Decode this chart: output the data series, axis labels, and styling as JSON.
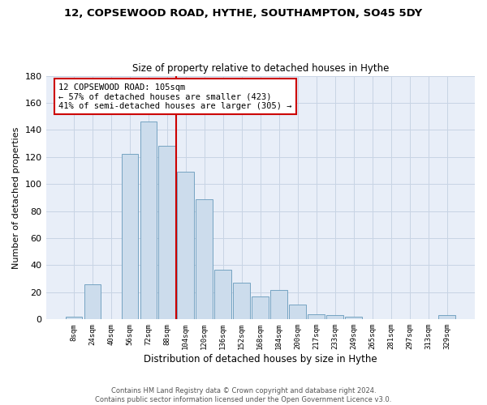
{
  "title1": "12, COPSEWOOD ROAD, HYTHE, SOUTHAMPTON, SO45 5DY",
  "title2": "Size of property relative to detached houses in Hythe",
  "xlabel": "Distribution of detached houses by size in Hythe",
  "ylabel": "Number of detached properties",
  "bar_labels": [
    "8sqm",
    "24sqm",
    "40sqm",
    "56sqm",
    "72sqm",
    "88sqm",
    "104sqm",
    "120sqm",
    "136sqm",
    "152sqm",
    "168sqm",
    "184sqm",
    "200sqm",
    "217sqm",
    "233sqm",
    "249sqm",
    "265sqm",
    "281sqm",
    "297sqm",
    "313sqm",
    "329sqm"
  ],
  "bar_values": [
    2,
    26,
    0,
    122,
    146,
    128,
    109,
    89,
    37,
    27,
    17,
    22,
    11,
    4,
    3,
    2,
    0,
    0,
    0,
    0,
    3
  ],
  "bar_color": "#ccdcec",
  "bar_edge_color": "#6699bb",
  "grid_color": "#c8d4e4",
  "bg_color": "#e8eef8",
  "vline_color": "#cc0000",
  "annotation_text": "12 COPSEWOOD ROAD: 105sqm\n← 57% of detached houses are smaller (423)\n41% of semi-detached houses are larger (305) →",
  "annotation_box_color": "#ffffff",
  "annotation_border_color": "#cc0000",
  "ylim": [
    0,
    180
  ],
  "yticks": [
    0,
    20,
    40,
    60,
    80,
    100,
    120,
    140,
    160,
    180
  ],
  "footer": "Contains HM Land Registry data © Crown copyright and database right 2024.\nContains public sector information licensed under the Open Government Licence v3.0.",
  "vline_bar_index": 6
}
